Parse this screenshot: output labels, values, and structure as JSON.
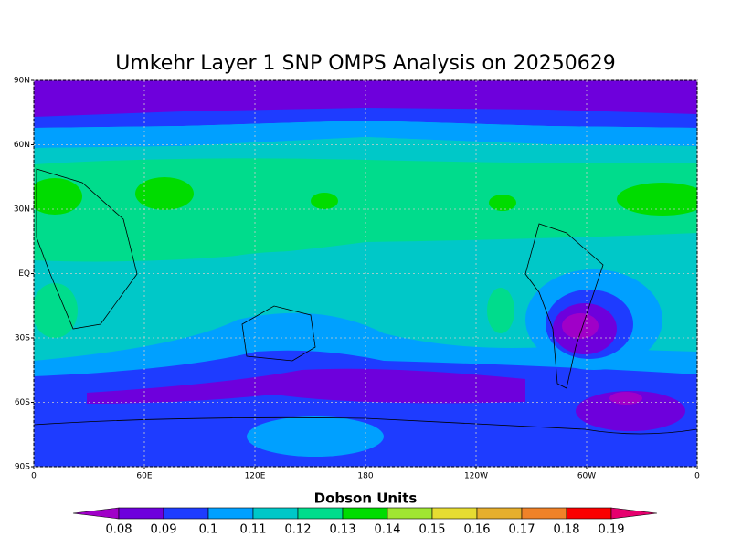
{
  "title": "Umkehr Layer 1 SNP OMPS Analysis on 20250629",
  "map": {
    "xlim": [
      0,
      360
    ],
    "ylim": [
      -90,
      90
    ],
    "xticks": [
      0,
      {
        "value": 60,
        "label": "60E"
      },
      {
        "value": 120,
        "label": "120E"
      },
      180,
      {
        "value": 240,
        "label": "120W"
      },
      {
        "value": 300,
        "label": "60W"
      },
      {
        "value": 360,
        "label": "0"
      }
    ],
    "yticks": [
      {
        "value": 90,
        "label": "90N"
      },
      {
        "value": 60,
        "label": "60N"
      },
      {
        "value": 30,
        "label": "30N"
      },
      {
        "value": 0,
        "label": "EQ"
      },
      {
        "value": -30,
        "label": "30S"
      },
      {
        "value": -60,
        "label": "60S"
      },
      {
        "value": -90,
        "label": "90S"
      }
    ],
    "grid": true
  },
  "colorbar": {
    "title": "Dobson Units",
    "levels": [
      0.08,
      0.09,
      0.1,
      0.11,
      0.12,
      0.13,
      0.14,
      0.15,
      0.16,
      0.17,
      0.18,
      0.19
    ],
    "colors": [
      "#a000c8",
      "#6e00dc",
      "#1e3cff",
      "#00a0ff",
      "#00c8c8",
      "#00dc8c",
      "#00dc00",
      "#a0e632",
      "#e6dc32",
      "#e6af2d",
      "#f08228",
      "#fa0000",
      "#e6006e"
    ]
  }
}
